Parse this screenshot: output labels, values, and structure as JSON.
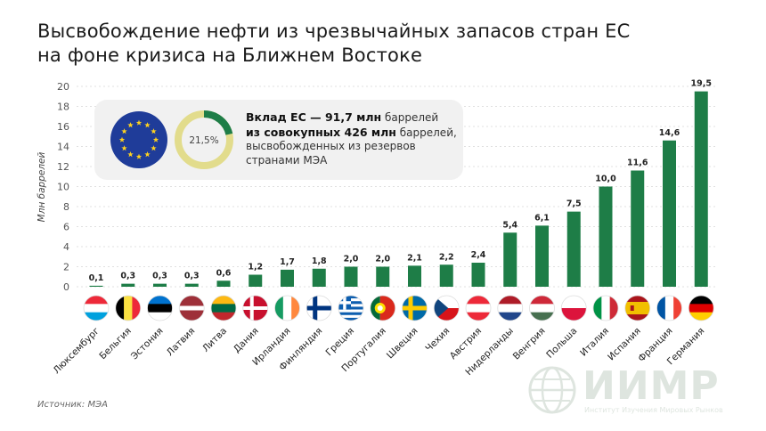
{
  "title_line1": "Высвобождение нефти из чрезвычайных запасов стран ЕС",
  "title_line2": "на фоне кризиса на Ближнем Востоке",
  "source": "Источник: МЭА",
  "info": {
    "percent": "21,5%",
    "percent_value": 21.5,
    "line1_bold": "Вклад ЕС — 91,7 млн",
    "line1_rest": " баррелей",
    "line2_bold": "из совокупных 426 млн",
    "line2_rest": " баррелей,",
    "line3": "высвобожденных из резервов",
    "line4": "странами МЭА",
    "eu_flag_icon": "eu-flag-icon"
  },
  "watermark": {
    "name": "ИИМР",
    "subtitle": "Институт Изучения Мировых Рынков"
  },
  "colors": {
    "bar": "#1e7d47",
    "donut_green": "#1e7d47",
    "donut_rest": "#e2dc8c",
    "card": "#f1f1f1",
    "eu_blue": "#1f3c99",
    "eu_star": "#ffd21f"
  },
  "chart_data": {
    "type": "bar",
    "ylabel": "Млн баррелей",
    "ylim": [
      0,
      20
    ],
    "yticks": [
      0,
      2,
      4,
      6,
      8,
      10,
      12,
      14,
      16,
      18,
      20
    ],
    "grid": true,
    "categories": [
      "Люксембург",
      "Бельгия",
      "Эстония",
      "Латвия",
      "Литва",
      "Дания",
      "Ирландия",
      "Финляндия",
      "Греция",
      "Португалия",
      "Швеция",
      "Чехия",
      "Австрия",
      "Нидерланды",
      "Венгрия",
      "Польша",
      "Италия",
      "Испания",
      "Франция",
      "Германия"
    ],
    "values": [
      0.1,
      0.3,
      0.3,
      0.3,
      0.6,
      1.2,
      1.7,
      1.8,
      2.0,
      2.0,
      2.1,
      2.2,
      2.4,
      5.4,
      6.1,
      7.5,
      10.0,
      11.6,
      14.6,
      19.5
    ],
    "labels": [
      "0,1",
      "0,3",
      "0,3",
      "0,3",
      "0,6",
      "1,2",
      "1,7",
      "1,8",
      "2,0",
      "2,0",
      "2,1",
      "2,2",
      "2,4",
      "5,4",
      "6,1",
      "7,5",
      "10,0",
      "11,6",
      "14,6",
      "19,5"
    ],
    "flags": [
      "luxembourg-flag-icon",
      "belgium-flag-icon",
      "estonia-flag-icon",
      "latvia-flag-icon",
      "lithuania-flag-icon",
      "denmark-flag-icon",
      "ireland-flag-icon",
      "finland-flag-icon",
      "greece-flag-icon",
      "portugal-flag-icon",
      "sweden-flag-icon",
      "czechia-flag-icon",
      "austria-flag-icon",
      "netherlands-flag-icon",
      "hungary-flag-icon",
      "poland-flag-icon",
      "italy-flag-icon",
      "spain-flag-icon",
      "france-flag-icon",
      "germany-flag-icon"
    ]
  }
}
